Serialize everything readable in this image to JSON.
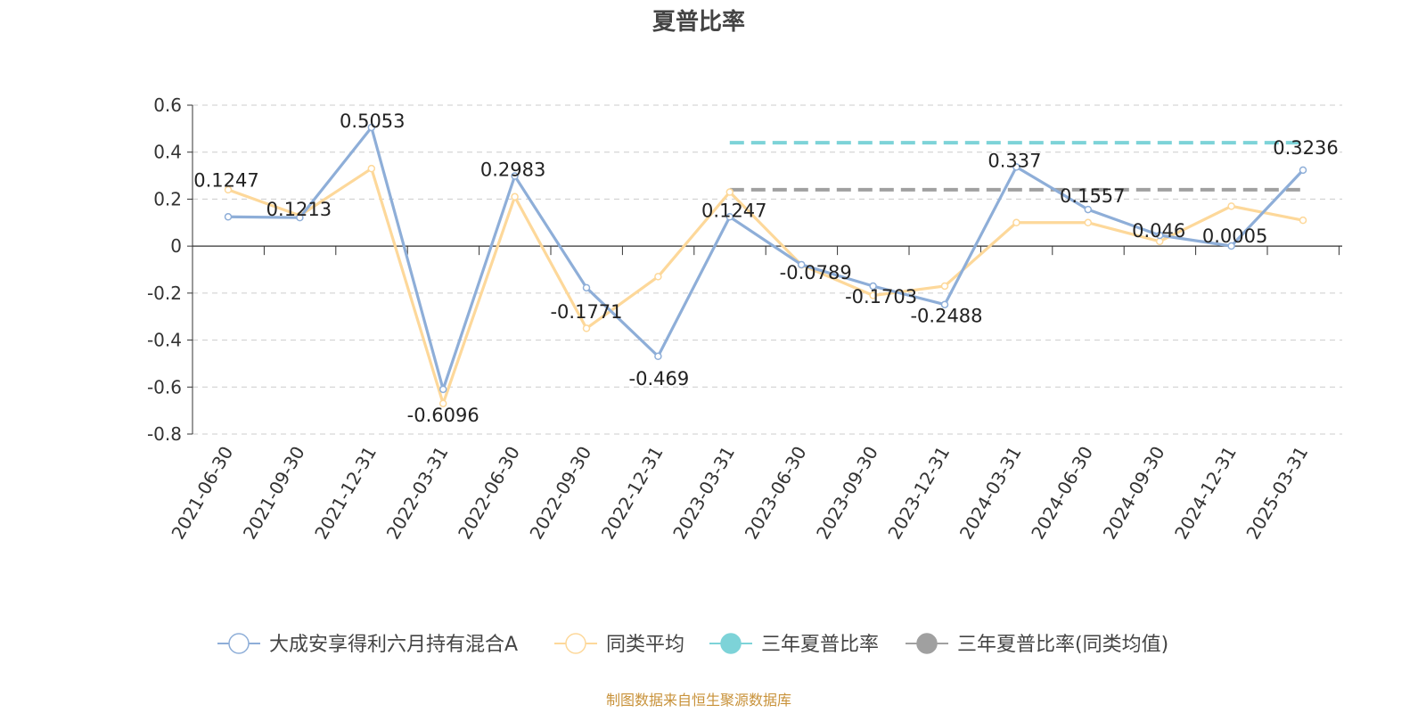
{
  "chart_data": {
    "type": "line",
    "title": "夏普比率",
    "categories": [
      "2021-06-30",
      "2021-09-30",
      "2021-12-31",
      "2022-03-31",
      "2022-06-30",
      "2022-09-30",
      "2022-12-31",
      "2023-03-31",
      "2023-06-30",
      "2023-09-30",
      "2023-12-31",
      "2024-03-31",
      "2024-06-30",
      "2024-09-30",
      "2024-12-31",
      "2025-03-31"
    ],
    "ylim": [
      -0.8,
      0.6
    ],
    "yticks": [
      0.6,
      0.4,
      0.2,
      0,
      -0.2,
      -0.4,
      -0.6,
      -0.8
    ],
    "ytick_labels": [
      "0.6",
      "0.4",
      "0.2",
      "0",
      "-0.2",
      "-0.4",
      "-0.6",
      "-0.8"
    ],
    "grid": true,
    "legend_position": "bottom",
    "series": [
      {
        "name": "大成安享得利六月持有混合A",
        "color": "#8eaed8",
        "values": [
          0.1247,
          0.1213,
          0.5053,
          -0.6096,
          0.2983,
          -0.1771,
          -0.469,
          0.1247,
          -0.0789,
          -0.1703,
          -0.2488,
          0.337,
          0.1557,
          0.046,
          0.0005,
          0.3236
        ],
        "labels": [
          "0.1247",
          "0.1213",
          "0.5053",
          "-0.6096",
          "0.2983",
          "-0.1771",
          "-0.469",
          "0.1247",
          "-0.0789",
          "-0.1703",
          "-0.2488",
          "0.337",
          "0.1557",
          "0.046",
          "0.0005",
          "0.3236"
        ]
      },
      {
        "name": "同类平均",
        "color": "#fdd89a",
        "values": [
          0.24,
          0.13,
          0.33,
          -0.67,
          0.21,
          -0.35,
          -0.13,
          0.23,
          -0.08,
          -0.21,
          -0.17,
          0.1,
          0.1,
          0.02,
          0.17,
          0.11
        ]
      },
      {
        "name": "三年夏普比率",
        "color": "#7dd3d8",
        "type": "dashed",
        "start_category": "2023-03-31",
        "end_category": "2025-03-31",
        "value": 0.44
      },
      {
        "name": "三年夏普比率(同类均值)",
        "color": "#a0a0a0",
        "type": "dashed",
        "start_category": "2023-03-31",
        "end_category": "2025-03-31",
        "value": 0.24
      }
    ],
    "source": "制图数据来自恒生聚源数据库"
  }
}
